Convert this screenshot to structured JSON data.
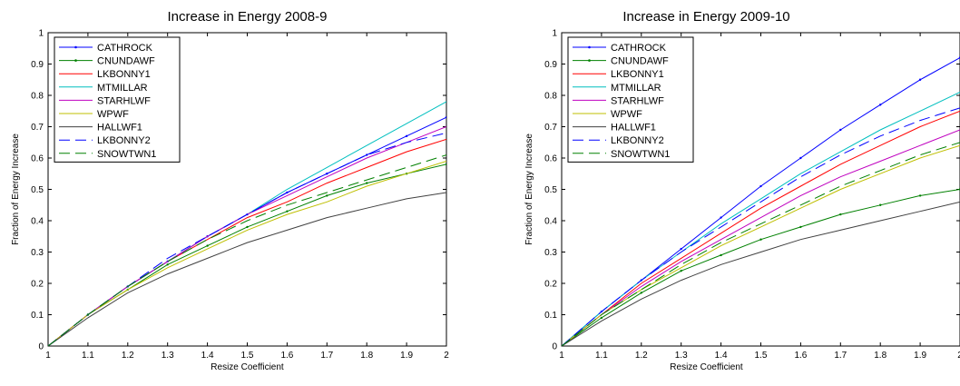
{
  "chart_data": [
    {
      "type": "line",
      "title": "Increase in Energy 2008-9",
      "xlabel": "Resize Coefficient",
      "ylabel": "Fraction of Energy Increase",
      "xlim": [
        1,
        2
      ],
      "ylim": [
        0,
        1
      ],
      "xticks": [
        "1",
        "1.1",
        "1.2",
        "1.3",
        "1.4",
        "1.5",
        "1.6",
        "1.7",
        "1.8",
        "1.9",
        "2"
      ],
      "yticks": [
        "0",
        "0.1",
        "0.2",
        "0.3",
        "0.4",
        "0.5",
        "0.6",
        "0.7",
        "0.8",
        "0.9",
        "1"
      ],
      "grid": false,
      "legend": "top-left",
      "x": [
        1.0,
        1.1,
        1.2,
        1.3,
        1.4,
        1.5,
        1.6,
        1.7,
        1.8,
        1.9,
        2.0
      ],
      "series": [
        {
          "name": "CATHROCK",
          "color": "#0000ff",
          "style": "solid",
          "marker": "dot",
          "values": [
            0,
            0.1,
            0.19,
            0.27,
            0.35,
            0.42,
            0.49,
            0.55,
            0.61,
            0.67,
            0.73
          ]
        },
        {
          "name": "CNUNDAWF",
          "color": "#008000",
          "style": "solid",
          "marker": "dot",
          "values": [
            0,
            0.1,
            0.18,
            0.26,
            0.32,
            0.38,
            0.43,
            0.48,
            0.52,
            0.55,
            0.58
          ]
        },
        {
          "name": "LKBONNY1",
          "color": "#ff0000",
          "style": "solid",
          "values": [
            0,
            0.1,
            0.19,
            0.27,
            0.34,
            0.41,
            0.46,
            0.52,
            0.57,
            0.62,
            0.66
          ]
        },
        {
          "name": "MTMILLAR",
          "color": "#00bfbf",
          "style": "solid",
          "values": [
            0,
            0.1,
            0.19,
            0.27,
            0.35,
            0.42,
            0.5,
            0.57,
            0.64,
            0.71,
            0.78
          ]
        },
        {
          "name": "STARHLWF",
          "color": "#bf00bf",
          "style": "solid",
          "values": [
            0,
            0.1,
            0.19,
            0.27,
            0.35,
            0.42,
            0.48,
            0.54,
            0.6,
            0.65,
            0.7
          ]
        },
        {
          "name": "WPWF",
          "color": "#bfbf00",
          "style": "solid",
          "values": [
            0,
            0.1,
            0.18,
            0.25,
            0.31,
            0.37,
            0.42,
            0.46,
            0.51,
            0.55,
            0.59
          ]
        },
        {
          "name": "HALLWF1",
          "color": "#404040",
          "style": "solid",
          "values": [
            0,
            0.09,
            0.17,
            0.23,
            0.28,
            0.33,
            0.37,
            0.41,
            0.44,
            0.47,
            0.49
          ]
        },
        {
          "name": "LKBONNY2",
          "color": "#0000ff",
          "style": "dashed",
          "values": [
            0,
            0.1,
            0.19,
            0.28,
            0.35,
            0.42,
            0.49,
            0.55,
            0.61,
            0.65,
            0.68
          ]
        },
        {
          "name": "SNOWTWN1",
          "color": "#008000",
          "style": "dashed",
          "values": [
            0,
            0.1,
            0.19,
            0.27,
            0.34,
            0.4,
            0.45,
            0.49,
            0.53,
            0.57,
            0.61
          ]
        }
      ]
    },
    {
      "type": "line",
      "title": "Increase in Energy 2009-10",
      "xlabel": "Resize Coefficient",
      "ylabel": "Fraction of Energy Increase",
      "xlim": [
        1,
        2
      ],
      "ylim": [
        0,
        1
      ],
      "xticks": [
        "1",
        "1.1",
        "1.2",
        "1.3",
        "1.4",
        "1.5",
        "1.6",
        "1.7",
        "1.8",
        "1.9",
        "2"
      ],
      "yticks": [
        "0",
        "0.1",
        "0.2",
        "0.3",
        "0.4",
        "0.5",
        "0.6",
        "0.7",
        "0.8",
        "0.9",
        "1"
      ],
      "grid": false,
      "legend": "top-left",
      "x": [
        1.0,
        1.1,
        1.2,
        1.3,
        1.4,
        1.5,
        1.6,
        1.7,
        1.8,
        1.9,
        2.0
      ],
      "series": [
        {
          "name": "CATHROCK",
          "color": "#0000ff",
          "style": "solid",
          "marker": "dot",
          "values": [
            0,
            0.11,
            0.21,
            0.31,
            0.41,
            0.51,
            0.6,
            0.69,
            0.77,
            0.85,
            0.92
          ]
        },
        {
          "name": "CNUNDAWF",
          "color": "#008000",
          "style": "solid",
          "marker": "dot",
          "values": [
            0,
            0.09,
            0.17,
            0.24,
            0.29,
            0.34,
            0.38,
            0.42,
            0.45,
            0.48,
            0.5
          ]
        },
        {
          "name": "LKBONNY1",
          "color": "#ff0000",
          "style": "solid",
          "values": [
            0,
            0.1,
            0.2,
            0.28,
            0.36,
            0.44,
            0.51,
            0.58,
            0.64,
            0.7,
            0.75
          ]
        },
        {
          "name": "MTMILLAR",
          "color": "#00bfbf",
          "style": "solid",
          "values": [
            0,
            0.11,
            0.21,
            0.3,
            0.39,
            0.47,
            0.55,
            0.62,
            0.69,
            0.75,
            0.81
          ]
        },
        {
          "name": "STARHLWF",
          "color": "#bf00bf",
          "style": "solid",
          "values": [
            0,
            0.1,
            0.19,
            0.27,
            0.34,
            0.41,
            0.48,
            0.54,
            0.59,
            0.64,
            0.69
          ]
        },
        {
          "name": "WPWF",
          "color": "#bfbf00",
          "style": "solid",
          "values": [
            0,
            0.1,
            0.18,
            0.25,
            0.32,
            0.38,
            0.44,
            0.5,
            0.55,
            0.6,
            0.64
          ]
        },
        {
          "name": "HALLWF1",
          "color": "#404040",
          "style": "solid",
          "values": [
            0,
            0.08,
            0.15,
            0.21,
            0.26,
            0.3,
            0.34,
            0.37,
            0.4,
            0.43,
            0.46
          ]
        },
        {
          "name": "LKBONNY2",
          "color": "#0000ff",
          "style": "dashed",
          "values": [
            0,
            0.11,
            0.21,
            0.3,
            0.38,
            0.46,
            0.54,
            0.61,
            0.67,
            0.72,
            0.76
          ]
        },
        {
          "name": "SNOWTWN1",
          "color": "#008000",
          "style": "dashed",
          "values": [
            0,
            0.1,
            0.18,
            0.26,
            0.33,
            0.39,
            0.45,
            0.51,
            0.56,
            0.61,
            0.65
          ]
        }
      ]
    }
  ]
}
